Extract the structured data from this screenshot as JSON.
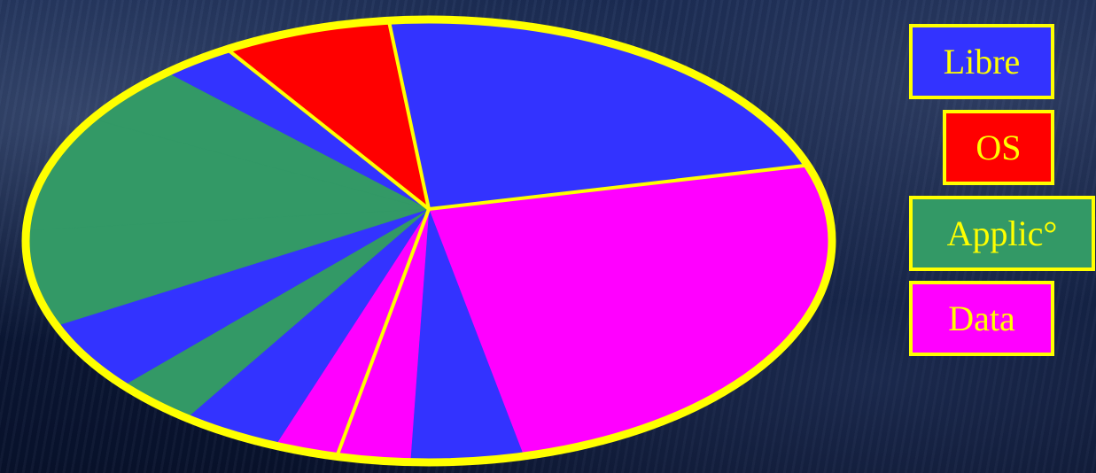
{
  "chart_data": {
    "type": "pie",
    "title": "",
    "start_angle_deg": 258,
    "legend": [
      {
        "label": "Libre",
        "color": "#3333ff"
      },
      {
        "label": "OS",
        "color": "#ff0000"
      },
      {
        "label": "Applic°",
        "color": "#339966"
      },
      {
        "label": "Data",
        "color": "#ff00ff"
      }
    ],
    "slices": [
      {
        "category": "Libre",
        "value": 26.5,
        "color": "#3333ff"
      },
      {
        "category": "Data",
        "value": 21.0,
        "color": "#ff00ff"
      },
      {
        "category": "Libre",
        "value": 7.0,
        "color": "#3333ff"
      },
      {
        "category": "Data",
        "value": 4.5,
        "color": "#ff00ff"
      },
      {
        "category": "Data",
        "value": 3.5,
        "color": "#ff00ff"
      },
      {
        "category": "Libre",
        "value": 4.5,
        "color": "#3333ff"
      },
      {
        "category": "Applic°",
        "value": 3.0,
        "color": "#339966"
      },
      {
        "category": "Libre",
        "value": 3.5,
        "color": "#3333ff"
      },
      {
        "category": "Applic°",
        "value": 4.0,
        "color": "#339966"
      },
      {
        "category": "Applic°",
        "value": 5.0,
        "color": "#339966"
      },
      {
        "category": "Applic°",
        "value": 3.5,
        "color": "#339966"
      },
      {
        "category": "Libre",
        "value": 3.0,
        "color": "#3333ff"
      },
      {
        "category": "OS",
        "value": 11.0,
        "color": "#ff0000"
      }
    ],
    "separators_after_slice": [
      0,
      3,
      11,
      12
    ],
    "outline_color": "#ffff00"
  }
}
